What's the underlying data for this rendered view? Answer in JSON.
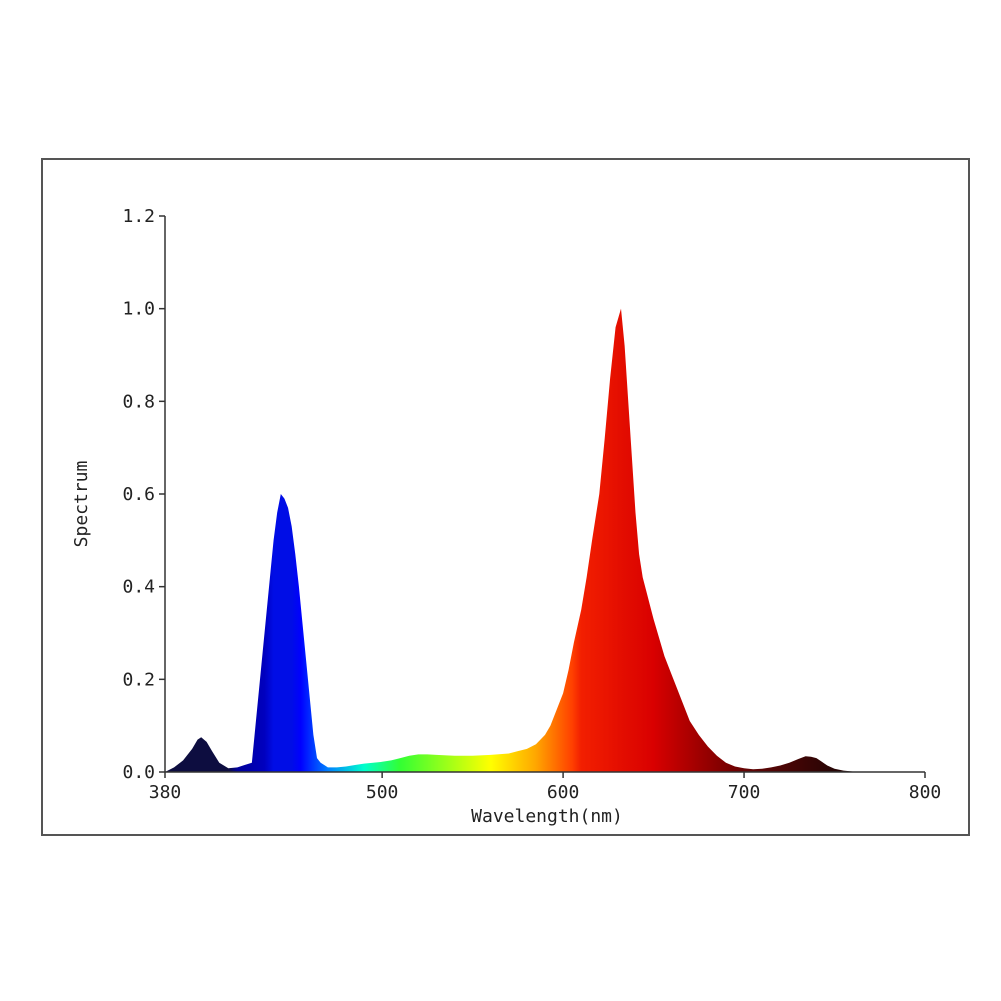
{
  "chart_data": {
    "type": "area",
    "xlabel": "Wavelength(nm)",
    "ylabel": "Spectrum",
    "xlim": [
      380,
      800
    ],
    "ylim": [
      0,
      1.2
    ],
    "x_ticks": [
      380,
      500,
      600,
      700,
      800
    ],
    "x_tick_labels": [
      "380",
      "500",
      "600",
      "700",
      "800"
    ],
    "y_ticks": [
      0,
      0.2,
      0.4,
      0.6,
      0.8,
      1.0,
      1.2
    ],
    "y_tick_labels": [
      "0.0",
      "0.2",
      "0.4",
      "0.6",
      "0.8",
      "1.0",
      "1.2"
    ],
    "grid": false,
    "fill": "visible-spectrum-gradient",
    "series": [
      {
        "x": [
          380,
          385,
          390,
          395,
          398,
          400,
          403,
          406,
          410,
          415,
          420,
          424,
          428,
          430,
          432,
          434,
          436,
          438,
          440,
          442,
          444,
          446,
          448,
          450,
          452,
          454,
          456,
          458,
          460,
          462,
          464,
          466,
          468,
          470,
          475,
          480,
          485,
          490,
          495,
          500,
          505,
          510,
          515,
          520,
          525,
          530,
          540,
          550,
          560,
          570,
          575,
          580,
          585,
          590,
          593,
          596,
          600,
          603,
          606,
          610,
          613,
          616,
          620,
          623,
          626,
          629,
          632,
          634,
          636,
          638,
          640,
          642,
          644,
          646,
          648,
          650,
          653,
          656,
          660,
          663,
          666,
          670,
          675,
          680,
          685,
          690,
          695,
          700,
          705,
          710,
          715,
          720,
          725,
          730,
          734,
          737,
          740,
          743,
          746,
          750,
          755,
          760,
          770,
          780,
          790,
          800
        ],
        "y": [
          0.0,
          0.01,
          0.025,
          0.05,
          0.07,
          0.075,
          0.065,
          0.045,
          0.02,
          0.008,
          0.01,
          0.015,
          0.02,
          0.1,
          0.18,
          0.26,
          0.34,
          0.42,
          0.5,
          0.56,
          0.6,
          0.59,
          0.57,
          0.53,
          0.47,
          0.4,
          0.32,
          0.24,
          0.16,
          0.08,
          0.03,
          0.02,
          0.015,
          0.01,
          0.01,
          0.012,
          0.015,
          0.018,
          0.02,
          0.022,
          0.025,
          0.03,
          0.035,
          0.038,
          0.038,
          0.037,
          0.035,
          0.035,
          0.037,
          0.04,
          0.045,
          0.05,
          0.06,
          0.08,
          0.1,
          0.13,
          0.17,
          0.22,
          0.28,
          0.35,
          0.42,
          0.5,
          0.6,
          0.72,
          0.85,
          0.96,
          1.0,
          0.92,
          0.8,
          0.68,
          0.56,
          0.47,
          0.42,
          0.39,
          0.36,
          0.33,
          0.29,
          0.25,
          0.21,
          0.18,
          0.15,
          0.11,
          0.08,
          0.055,
          0.035,
          0.02,
          0.012,
          0.008,
          0.006,
          0.007,
          0.01,
          0.014,
          0.02,
          0.028,
          0.034,
          0.033,
          0.03,
          0.022,
          0.014,
          0.007,
          0.003,
          0.001,
          0.0,
          0.0,
          0.0,
          0.0
        ]
      }
    ]
  }
}
